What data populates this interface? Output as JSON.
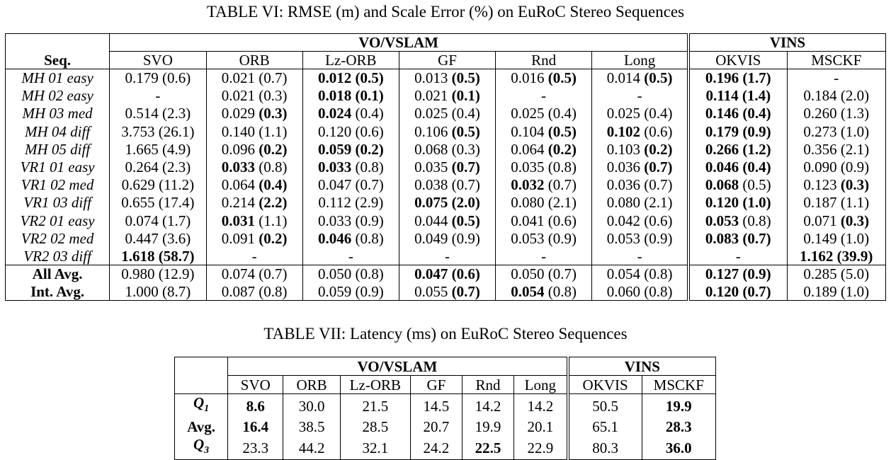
{
  "table6": {
    "caption": "TABLE VI: RMSE (m) and Scale Error (%) on EuRoC Stereo Sequences",
    "group_vo": "VO/VSLAM",
    "group_vins": "VINS",
    "seq_header": "Seq.",
    "columns": [
      "SVO",
      "ORB",
      "Lz-ORB",
      "GF",
      "Rnd",
      "Long",
      "OKVIS",
      "MSCKF"
    ],
    "rows": [
      {
        "seq": "MH 01 easy",
        "cells": [
          [
            "0.179",
            "(0.6)",
            false,
            false
          ],
          [
            "0.021",
            "(0.7)",
            false,
            false
          ],
          [
            "0.012",
            "(0.5)",
            true,
            true
          ],
          [
            "0.013",
            "(0.5)",
            false,
            true
          ],
          [
            "0.016",
            "(0.5)",
            false,
            true
          ],
          [
            "0.014",
            "(0.5)",
            false,
            true
          ],
          [
            "0.196",
            "(1.7)",
            true,
            true
          ],
          [
            "-",
            "",
            false,
            false
          ]
        ]
      },
      {
        "seq": "MH 02 easy",
        "cells": [
          [
            "-",
            "",
            false,
            false
          ],
          [
            "0.021",
            "(0.3)",
            false,
            false
          ],
          [
            "0.018",
            "(0.1)",
            true,
            true
          ],
          [
            "0.021",
            "(0.1)",
            false,
            true
          ],
          [
            "-",
            "",
            false,
            false
          ],
          [
            "-",
            "",
            false,
            false
          ],
          [
            "0.114",
            "(1.4)",
            true,
            true
          ],
          [
            "0.184",
            "(2.0)",
            false,
            false
          ]
        ]
      },
      {
        "seq": "MH 03 med",
        "cells": [
          [
            "0.514",
            "(2.3)",
            false,
            false
          ],
          [
            "0.029",
            "(0.3)",
            false,
            true
          ],
          [
            "0.024",
            "(0.4)",
            true,
            false
          ],
          [
            "0.025",
            "(0.4)",
            false,
            false
          ],
          [
            "0.025",
            "(0.4)",
            false,
            false
          ],
          [
            "0.025",
            "(0.4)",
            false,
            false
          ],
          [
            "0.146",
            "(0.4)",
            true,
            true
          ],
          [
            "0.260",
            "(1.3)",
            false,
            false
          ]
        ]
      },
      {
        "seq": "MH 04 diff",
        "cells": [
          [
            "3.753",
            "(26.1)",
            false,
            false
          ],
          [
            "0.140",
            "(1.1)",
            false,
            false
          ],
          [
            "0.120",
            "(0.6)",
            false,
            false
          ],
          [
            "0.106",
            "(0.5)",
            false,
            true
          ],
          [
            "0.104",
            "(0.5)",
            false,
            true
          ],
          [
            "0.102",
            "(0.6)",
            true,
            false
          ],
          [
            "0.179",
            "(0.9)",
            true,
            true
          ],
          [
            "0.273",
            "(1.0)",
            false,
            false
          ]
        ]
      },
      {
        "seq": "MH 05 diff",
        "cells": [
          [
            "1.665",
            "(4.9)",
            false,
            false
          ],
          [
            "0.096",
            "(0.2)",
            false,
            true
          ],
          [
            "0.059",
            "(0.2)",
            true,
            true
          ],
          [
            "0.068",
            "(0.3)",
            false,
            false
          ],
          [
            "0.064",
            "(0.2)",
            false,
            true
          ],
          [
            "0.103",
            "(0.2)",
            false,
            true
          ],
          [
            "0.266",
            "(1.2)",
            true,
            true
          ],
          [
            "0.356",
            "(2.1)",
            false,
            false
          ]
        ]
      },
      {
        "seq": "VR1 01 easy",
        "cells": [
          [
            "0.264",
            "(2.3)",
            false,
            false
          ],
          [
            "0.033",
            "(0.8)",
            true,
            false
          ],
          [
            "0.033",
            "(0.8)",
            true,
            false
          ],
          [
            "0.035",
            "(0.7)",
            false,
            true
          ],
          [
            "0.035",
            "(0.8)",
            false,
            false
          ],
          [
            "0.036",
            "(0.7)",
            false,
            true
          ],
          [
            "0.046",
            "(0.4)",
            true,
            true
          ],
          [
            "0.090",
            "(0.9)",
            false,
            false
          ]
        ]
      },
      {
        "seq": "VR1 02 med",
        "cells": [
          [
            "0.629",
            "(11.2)",
            false,
            false
          ],
          [
            "0.064",
            "(0.4)",
            false,
            true
          ],
          [
            "0.047",
            "(0.7)",
            false,
            false
          ],
          [
            "0.038",
            "(0.7)",
            false,
            false
          ],
          [
            "0.032",
            "(0.7)",
            true,
            false
          ],
          [
            "0.036",
            "(0.7)",
            false,
            false
          ],
          [
            "0.068",
            "(0.5)",
            true,
            false
          ],
          [
            "0.123",
            "(0.3)",
            false,
            true
          ]
        ]
      },
      {
        "seq": "VR1 03 diff",
        "cells": [
          [
            "0.655",
            "(17.4)",
            false,
            false
          ],
          [
            "0.214",
            "(2.2)",
            false,
            true
          ],
          [
            "0.112",
            "(2.9)",
            false,
            false
          ],
          [
            "0.075",
            "(2.0)",
            true,
            true
          ],
          [
            "0.080",
            "(2.1)",
            false,
            false
          ],
          [
            "0.080",
            "(2.1)",
            false,
            false
          ],
          [
            "0.120",
            "(1.0)",
            true,
            true
          ],
          [
            "0.187",
            "(1.1)",
            false,
            false
          ]
        ]
      },
      {
        "seq": "VR2 01 easy",
        "cells": [
          [
            "0.074",
            "(1.7)",
            false,
            false
          ],
          [
            "0.031",
            "(1.1)",
            true,
            false
          ],
          [
            "0.033",
            "(0.9)",
            false,
            false
          ],
          [
            "0.044",
            "(0.5)",
            false,
            true
          ],
          [
            "0.041",
            "(0.6)",
            false,
            false
          ],
          [
            "0.042",
            "(0.6)",
            false,
            false
          ],
          [
            "0.053",
            "(0.8)",
            true,
            false
          ],
          [
            "0.071",
            "(0.3)",
            false,
            true
          ]
        ]
      },
      {
        "seq": "VR2 02 med",
        "cells": [
          [
            "0.447",
            "(3.6)",
            false,
            false
          ],
          [
            "0.091",
            "(0.2)",
            false,
            true
          ],
          [
            "0.046",
            "(0.8)",
            true,
            false
          ],
          [
            "0.049",
            "(0.9)",
            false,
            false
          ],
          [
            "0.053",
            "(0.9)",
            false,
            false
          ],
          [
            "0.053",
            "(0.9)",
            false,
            false
          ],
          [
            "0.083",
            "(0.7)",
            true,
            true
          ],
          [
            "0.149",
            "(1.0)",
            false,
            false
          ]
        ]
      },
      {
        "seq": "VR2 03 diff",
        "cells": [
          [
            "1.618",
            "(58.7)",
            true,
            true
          ],
          [
            "-",
            "",
            false,
            false
          ],
          [
            "-",
            "",
            false,
            false
          ],
          [
            "-",
            "",
            false,
            false
          ],
          [
            "-",
            "",
            false,
            false
          ],
          [
            "-",
            "",
            false,
            false
          ],
          [
            "-",
            "",
            false,
            false
          ],
          [
            "1.162",
            "(39.9)",
            true,
            true
          ]
        ]
      }
    ],
    "summary": [
      {
        "label": "All Avg.",
        "cells": [
          [
            "0.980",
            "(12.9)",
            false,
            false
          ],
          [
            "0.074",
            "(0.7)",
            false,
            false
          ],
          [
            "0.050",
            "(0.8)",
            false,
            false
          ],
          [
            "0.047",
            "(0.6)",
            true,
            true
          ],
          [
            "0.050",
            "(0.7)",
            false,
            false
          ],
          [
            "0.054",
            "(0.8)",
            false,
            false
          ],
          [
            "0.127",
            "(0.9)",
            true,
            true
          ],
          [
            "0.285",
            "(5.0)",
            false,
            false
          ]
        ]
      },
      {
        "label": "Int. Avg.",
        "cells": [
          [
            "1.000",
            "(8.7)",
            false,
            false
          ],
          [
            "0.087",
            "(0.8)",
            false,
            false
          ],
          [
            "0.059",
            "(0.9)",
            false,
            false
          ],
          [
            "0.055",
            "(0.7)",
            false,
            true
          ],
          [
            "0.054",
            "(0.8)",
            true,
            false
          ],
          [
            "0.060",
            "(0.8)",
            false,
            false
          ],
          [
            "0.120",
            "(0.7)",
            true,
            true
          ],
          [
            "0.189",
            "(1.0)",
            false,
            false
          ]
        ]
      }
    ]
  },
  "table7": {
    "caption": "TABLE VII: Latency (ms) on EuRoC Stereo Sequences",
    "group_vo": "VO/VSLAM",
    "group_vins": "VINS",
    "columns": [
      "SVO",
      "ORB",
      "Lz-ORB",
      "GF",
      "Rnd",
      "Long",
      "OKVIS",
      "MSCKF"
    ],
    "rows": [
      {
        "label": "Q",
        "sub": "1",
        "cells": [
          [
            "8.6",
            true
          ],
          [
            "30.0",
            false
          ],
          [
            "21.5",
            false
          ],
          [
            "14.5",
            false
          ],
          [
            "14.2",
            false
          ],
          [
            "14.2",
            false
          ],
          [
            "50.5",
            false
          ],
          [
            "19.9",
            true
          ]
        ]
      },
      {
        "label": "Avg.",
        "sub": "",
        "cells": [
          [
            "16.4",
            true
          ],
          [
            "38.5",
            false
          ],
          [
            "28.5",
            false
          ],
          [
            "20.7",
            false
          ],
          [
            "19.9",
            false
          ],
          [
            "20.1",
            false
          ],
          [
            "65.1",
            false
          ],
          [
            "28.3",
            true
          ]
        ]
      },
      {
        "label": "Q",
        "sub": "3",
        "cells": [
          [
            "23.3",
            false
          ],
          [
            "44.2",
            false
          ],
          [
            "32.1",
            false
          ],
          [
            "24.2",
            false
          ],
          [
            "22.5",
            true
          ],
          [
            "22.9",
            false
          ],
          [
            "80.3",
            false
          ],
          [
            "36.0",
            true
          ]
        ]
      }
    ]
  }
}
